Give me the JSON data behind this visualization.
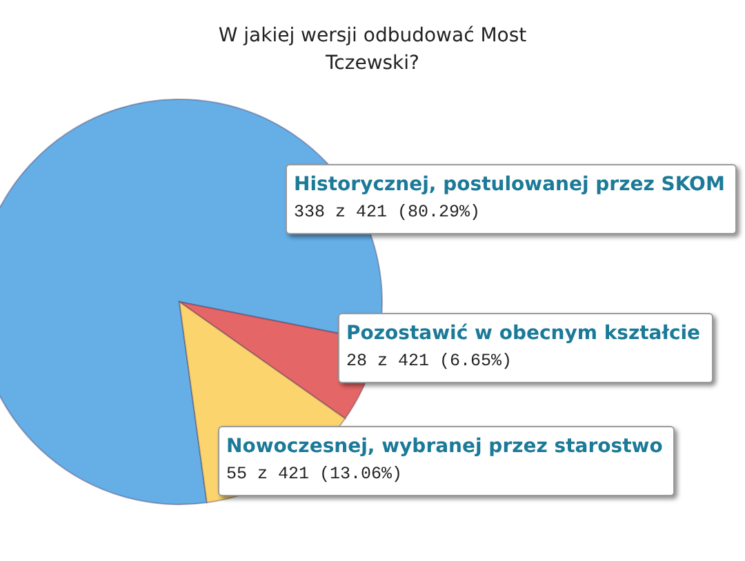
{
  "chart_data": {
    "type": "pie",
    "title": "W jakiej wersji odbudować Most Tczewski?",
    "categories": [
      "Historycznej, postulowanej przez SKOM",
      "Pozostawić w obecnym kształcie",
      "Nowoczesnej, wybranej przez starostwo"
    ],
    "values": [
      338,
      28,
      55
    ],
    "colors": [
      "#65aee6",
      "#e56666",
      "#fbd46d"
    ],
    "value_labels": [
      "338 z 421 (80.29%)",
      "28 z 421 (6.65%)",
      "55 z 421 (13.06%)"
    ]
  }
}
